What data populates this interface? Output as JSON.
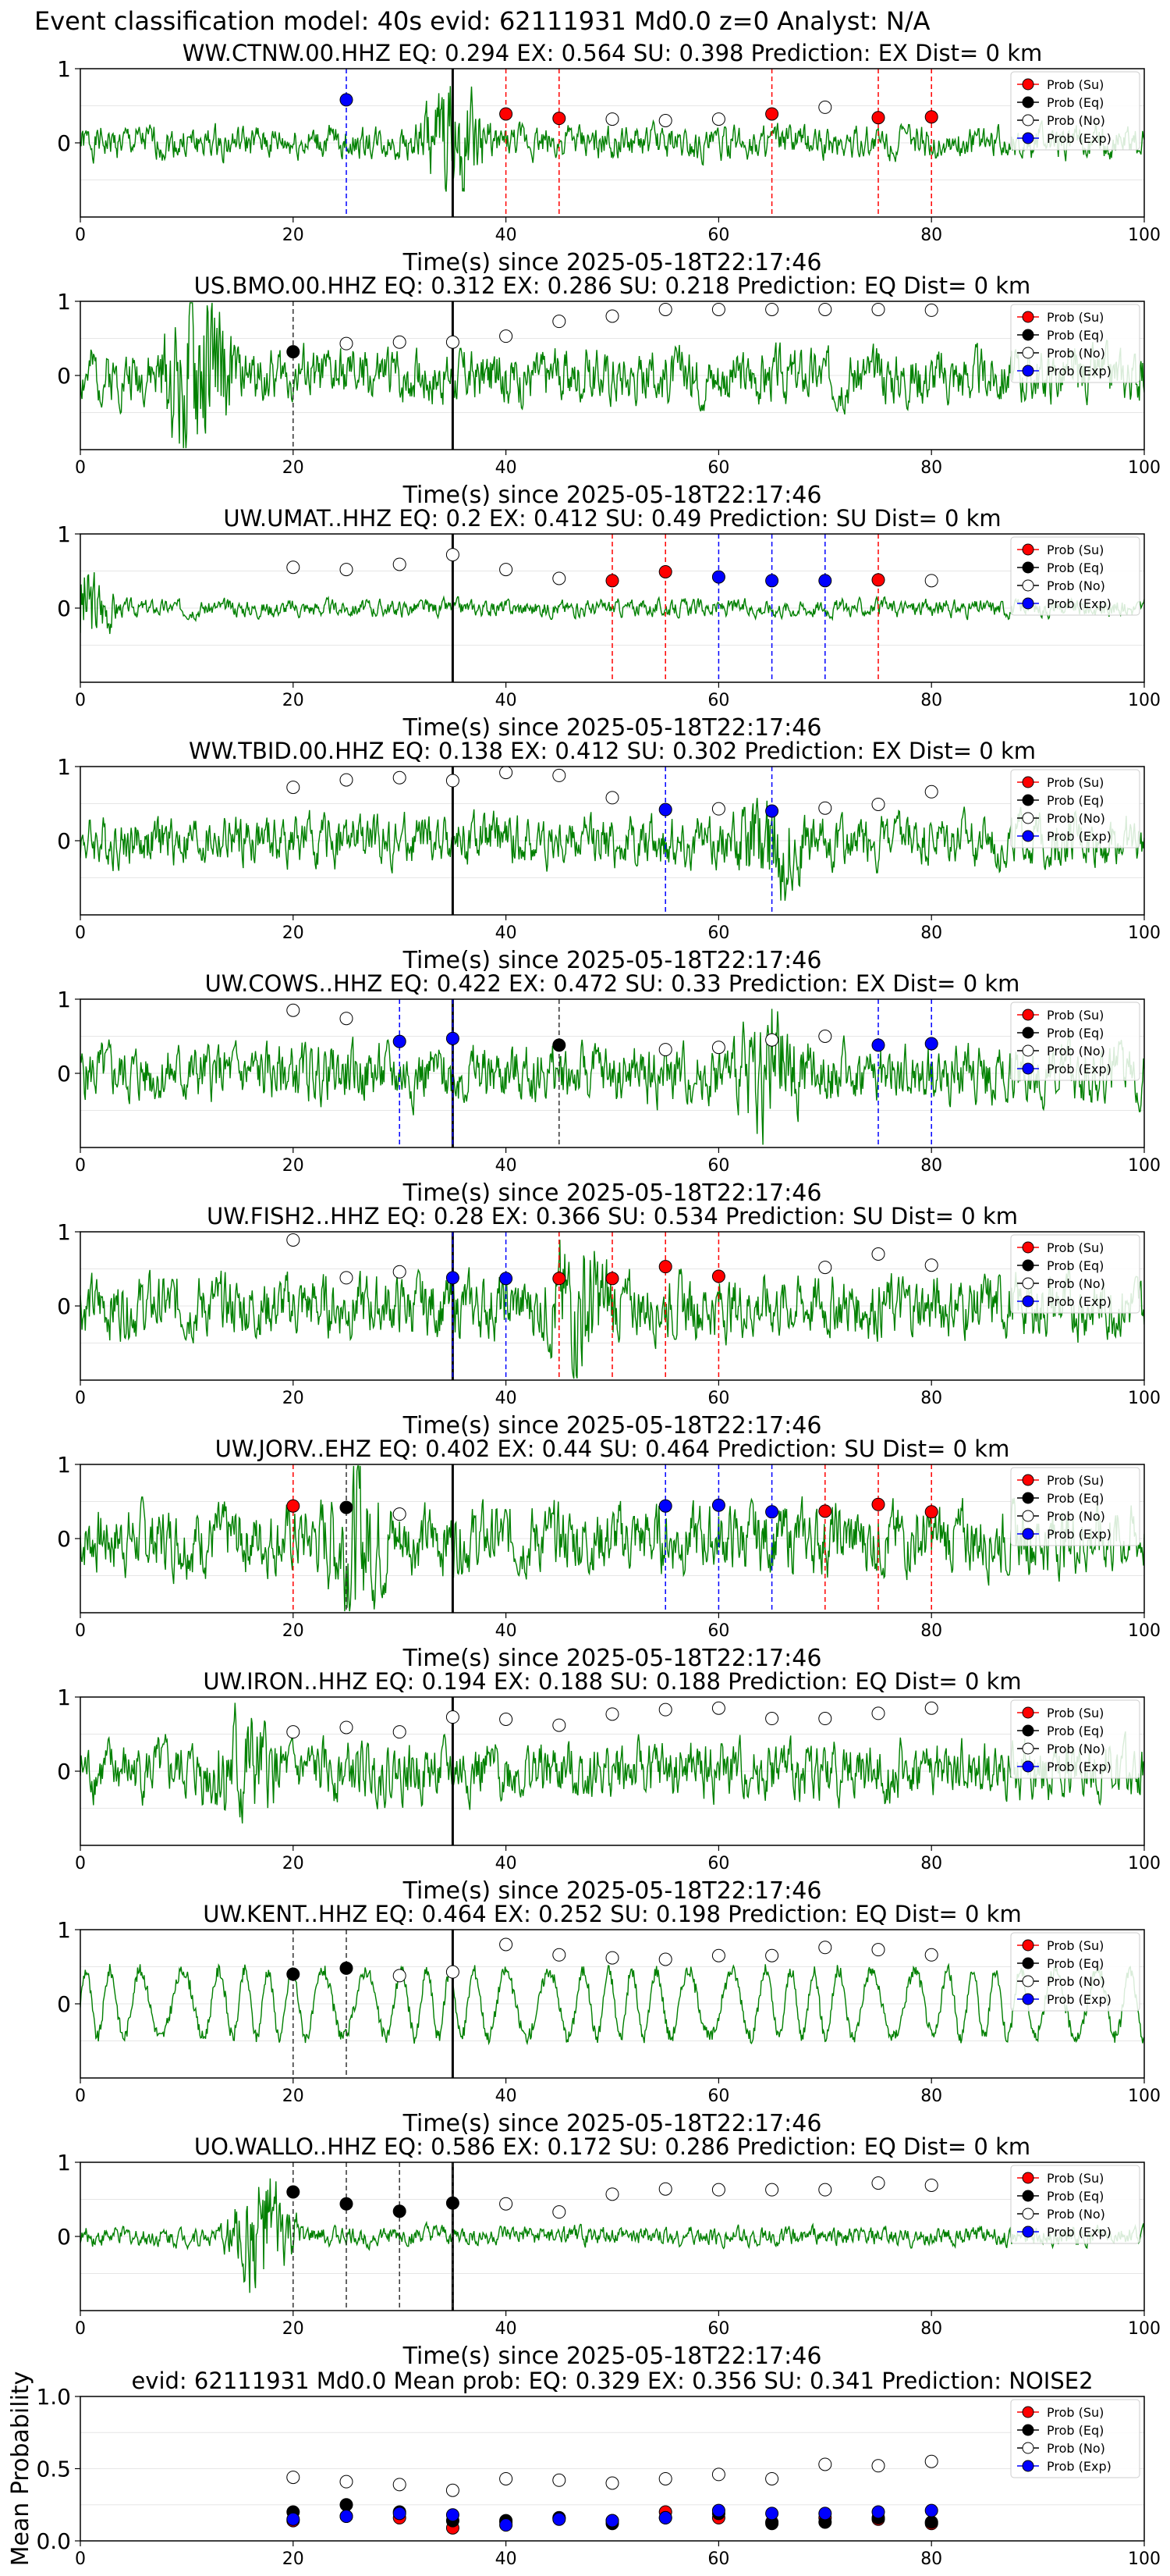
{
  "figure": {
    "suptitle": "Event classification model: 40s evid: 62111931 Md0.0 z=0 Analyst: N/A",
    "xlabel": "Time(s) since 2025-05-18T22:17:46",
    "legend": [
      "Prob (Su)",
      "Prob (Eq)",
      "Prob (No)",
      "Prob (Exp)"
    ],
    "colors": {
      "trace": "#008000",
      "su": "#ff0000",
      "eq": "#000000",
      "no": "#ffffff",
      "exp": "#0000ff",
      "onset": "#000000"
    }
  },
  "chart_data": [
    {
      "type": "line",
      "title": "WW.CTNW.00.HHZ   EQ: 0.294  EX: 0.564  SU: 0.398   Prediction: EX    Dist= 0 km",
      "xlabel": "Time(s) since 2025-05-18T22:17:46",
      "xlim": [
        0,
        100
      ],
      "ylim": [
        -1,
        1
      ],
      "xticks": [
        0,
        20,
        40,
        60,
        80,
        100
      ],
      "yticks": [
        0,
        1
      ],
      "onset_x": 35,
      "trace": {
        "amp": 0.17,
        "burst_at": 35,
        "burst_amp": 0.55,
        "seed": 1
      },
      "points": [
        {
          "x": 25,
          "y": 0.58,
          "cls": "exp"
        },
        {
          "x": 40,
          "y": 0.39,
          "cls": "su"
        },
        {
          "x": 45,
          "y": 0.33,
          "cls": "su"
        },
        {
          "x": 50,
          "y": 0.32,
          "cls": "no"
        },
        {
          "x": 55,
          "y": 0.3,
          "cls": "no"
        },
        {
          "x": 60,
          "y": 0.32,
          "cls": "no"
        },
        {
          "x": 65,
          "y": 0.39,
          "cls": "su"
        },
        {
          "x": 70,
          "y": 0.48,
          "cls": "no"
        },
        {
          "x": 75,
          "y": 0.34,
          "cls": "su"
        },
        {
          "x": 80,
          "y": 0.35,
          "cls": "su"
        }
      ]
    },
    {
      "type": "line",
      "title": "US.BMO.00.HHZ   EQ: 0.312  EX: 0.286  SU: 0.218   Prediction: EQ    Dist= 0 km",
      "xlabel": "Time(s) since 2025-05-18T22:17:46",
      "xlim": [
        0,
        100
      ],
      "ylim": [
        -1,
        1
      ],
      "xticks": [
        0,
        20,
        40,
        60,
        80,
        100
      ],
      "yticks": [
        0,
        1
      ],
      "onset_x": 35,
      "trace": {
        "amp": 0.28,
        "burst_at": 11,
        "burst_amp": 0.9,
        "seed": 2
      },
      "points": [
        {
          "x": 20,
          "y": 0.32,
          "cls": "eq"
        },
        {
          "x": 25,
          "y": 0.43,
          "cls": "no"
        },
        {
          "x": 30,
          "y": 0.45,
          "cls": "no"
        },
        {
          "x": 35,
          "y": 0.45,
          "cls": "no"
        },
        {
          "x": 40,
          "y": 0.53,
          "cls": "no"
        },
        {
          "x": 45,
          "y": 0.73,
          "cls": "no"
        },
        {
          "x": 50,
          "y": 0.8,
          "cls": "no"
        },
        {
          "x": 55,
          "y": 0.89,
          "cls": "no"
        },
        {
          "x": 60,
          "y": 0.89,
          "cls": "no"
        },
        {
          "x": 65,
          "y": 0.89,
          "cls": "no"
        },
        {
          "x": 70,
          "y": 0.89,
          "cls": "no"
        },
        {
          "x": 75,
          "y": 0.89,
          "cls": "no"
        },
        {
          "x": 80,
          "y": 0.88,
          "cls": "no"
        }
      ]
    },
    {
      "type": "line",
      "title": "UW.UMAT..HHZ   EQ: 0.2  EX: 0.412  SU: 0.49   Prediction: SU    Dist= 0 km",
      "xlabel": "Time(s) since 2025-05-18T22:17:46",
      "xlim": [
        0,
        100
      ],
      "ylim": [
        -1,
        1
      ],
      "xticks": [
        0,
        20,
        40,
        60,
        80,
        100
      ],
      "yticks": [
        0,
        1
      ],
      "onset_x": 35,
      "trace": {
        "amp": 0.09,
        "burst_at": 0,
        "burst_amp": 0.5,
        "seed": 3
      },
      "points": [
        {
          "x": 20,
          "y": 0.55,
          "cls": "no"
        },
        {
          "x": 25,
          "y": 0.52,
          "cls": "no"
        },
        {
          "x": 30,
          "y": 0.59,
          "cls": "no"
        },
        {
          "x": 35,
          "y": 0.72,
          "cls": "no"
        },
        {
          "x": 40,
          "y": 0.52,
          "cls": "no"
        },
        {
          "x": 45,
          "y": 0.4,
          "cls": "no"
        },
        {
          "x": 50,
          "y": 0.37,
          "cls": "su"
        },
        {
          "x": 55,
          "y": 0.49,
          "cls": "su"
        },
        {
          "x": 60,
          "y": 0.42,
          "cls": "exp"
        },
        {
          "x": 65,
          "y": 0.37,
          "cls": "exp"
        },
        {
          "x": 70,
          "y": 0.37,
          "cls": "exp"
        },
        {
          "x": 75,
          "y": 0.38,
          "cls": "su"
        },
        {
          "x": 80,
          "y": 0.37,
          "cls": "no"
        }
      ]
    },
    {
      "type": "line",
      "title": "WW.TBID.00.HHZ   EQ: 0.138  EX: 0.412  SU: 0.302   Prediction: EX    Dist= 0 km",
      "xlabel": "Time(s) since 2025-05-18T22:17:46",
      "xlim": [
        0,
        100
      ],
      "ylim": [
        -1,
        1
      ],
      "xticks": [
        0,
        20,
        40,
        60,
        80,
        100
      ],
      "yticks": [
        0,
        1
      ],
      "onset_x": 35,
      "trace": {
        "amp": 0.26,
        "burst_at": 65,
        "burst_amp": 0.4,
        "seed": 4
      },
      "points": [
        {
          "x": 20,
          "y": 0.72,
          "cls": "no"
        },
        {
          "x": 25,
          "y": 0.82,
          "cls": "no"
        },
        {
          "x": 30,
          "y": 0.85,
          "cls": "no"
        },
        {
          "x": 35,
          "y": 0.81,
          "cls": "no"
        },
        {
          "x": 40,
          "y": 0.92,
          "cls": "no"
        },
        {
          "x": 45,
          "y": 0.88,
          "cls": "no"
        },
        {
          "x": 50,
          "y": 0.58,
          "cls": "no"
        },
        {
          "x": 55,
          "y": 0.42,
          "cls": "exp"
        },
        {
          "x": 60,
          "y": 0.43,
          "cls": "no"
        },
        {
          "x": 65,
          "y": 0.4,
          "cls": "exp"
        },
        {
          "x": 70,
          "y": 0.44,
          "cls": "no"
        },
        {
          "x": 75,
          "y": 0.49,
          "cls": "no"
        },
        {
          "x": 80,
          "y": 0.66,
          "cls": "no"
        }
      ]
    },
    {
      "type": "line",
      "title": "UW.COWS..HHZ   EQ: 0.422  EX: 0.472  SU: 0.33   Prediction: EX    Dist= 0 km",
      "xlabel": "Time(s) since 2025-05-18T22:17:46",
      "xlim": [
        0,
        100
      ],
      "ylim": [
        -1,
        1
      ],
      "xticks": [
        0,
        20,
        40,
        60,
        80,
        100
      ],
      "yticks": [
        0,
        1
      ],
      "onset_x": 35,
      "trace": {
        "amp": 0.3,
        "burst_at": 65,
        "burst_amp": 0.45,
        "seed": 5
      },
      "points": [
        {
          "x": 20,
          "y": 0.85,
          "cls": "no"
        },
        {
          "x": 25,
          "y": 0.74,
          "cls": "no"
        },
        {
          "x": 30,
          "y": 0.43,
          "cls": "exp"
        },
        {
          "x": 35,
          "y": 0.47,
          "cls": "exp"
        },
        {
          "x": 45,
          "y": 0.38,
          "cls": "eq"
        },
        {
          "x": 55,
          "y": 0.32,
          "cls": "no"
        },
        {
          "x": 60,
          "y": 0.35,
          "cls": "no"
        },
        {
          "x": 65,
          "y": 0.45,
          "cls": "no"
        },
        {
          "x": 70,
          "y": 0.5,
          "cls": "no"
        },
        {
          "x": 75,
          "y": 0.38,
          "cls": "exp"
        },
        {
          "x": 80,
          "y": 0.4,
          "cls": "exp"
        }
      ]
    },
    {
      "type": "line",
      "title": "UW.FISH2..HHZ   EQ: 0.28  EX: 0.366  SU: 0.534   Prediction: SU    Dist= 0 km",
      "xlabel": "Time(s) since 2025-05-18T22:17:46",
      "xlim": [
        0,
        100
      ],
      "ylim": [
        -1,
        1
      ],
      "xticks": [
        0,
        20,
        40,
        60,
        80,
        100
      ],
      "yticks": [
        0,
        1
      ],
      "onset_x": 35,
      "trace": {
        "amp": 0.32,
        "burst_at": 47,
        "burst_amp": 0.5,
        "seed": 6
      },
      "points": [
        {
          "x": 20,
          "y": 0.89,
          "cls": "no"
        },
        {
          "x": 25,
          "y": 0.38,
          "cls": "no"
        },
        {
          "x": 30,
          "y": 0.46,
          "cls": "no"
        },
        {
          "x": 35,
          "y": 0.38,
          "cls": "exp"
        },
        {
          "x": 40,
          "y": 0.37,
          "cls": "exp"
        },
        {
          "x": 45,
          "y": 0.37,
          "cls": "su"
        },
        {
          "x": 50,
          "y": 0.37,
          "cls": "su"
        },
        {
          "x": 55,
          "y": 0.53,
          "cls": "su"
        },
        {
          "x": 60,
          "y": 0.4,
          "cls": "su"
        },
        {
          "x": 70,
          "y": 0.52,
          "cls": "no"
        },
        {
          "x": 75,
          "y": 0.7,
          "cls": "no"
        },
        {
          "x": 80,
          "y": 0.55,
          "cls": "no"
        }
      ]
    },
    {
      "type": "line",
      "title": "UW.JORV..EHZ   EQ: 0.402  EX: 0.44  SU: 0.464   Prediction: SU    Dist= 0 km",
      "xlabel": "Time(s) since 2025-05-18T22:17:46",
      "xlim": [
        0,
        100
      ],
      "ylim": [
        -1,
        1
      ],
      "xticks": [
        0,
        20,
        40,
        60,
        80,
        100
      ],
      "yticks": [
        0,
        1
      ],
      "onset_x": 35,
      "trace": {
        "amp": 0.35,
        "burst_at": 26,
        "burst_amp": 0.5,
        "seed": 7
      },
      "points": [
        {
          "x": 20,
          "y": 0.44,
          "cls": "su"
        },
        {
          "x": 25,
          "y": 0.42,
          "cls": "eq"
        },
        {
          "x": 30,
          "y": 0.33,
          "cls": "no"
        },
        {
          "x": 55,
          "y": 0.44,
          "cls": "exp"
        },
        {
          "x": 60,
          "y": 0.45,
          "cls": "exp"
        },
        {
          "x": 65,
          "y": 0.36,
          "cls": "exp"
        },
        {
          "x": 70,
          "y": 0.37,
          "cls": "su"
        },
        {
          "x": 75,
          "y": 0.46,
          "cls": "su"
        },
        {
          "x": 80,
          "y": 0.36,
          "cls": "su"
        }
      ]
    },
    {
      "type": "line",
      "title": "UW.IRON..HHZ   EQ: 0.194  EX: 0.188  SU: 0.188   Prediction: EQ    Dist= 0 km",
      "xlabel": "Time(s) since 2025-05-18T22:17:46",
      "xlim": [
        0,
        100
      ],
      "ylim": [
        -1,
        1
      ],
      "xticks": [
        0,
        20,
        40,
        60,
        80,
        100
      ],
      "yticks": [
        0,
        1
      ],
      "onset_x": 35,
      "trace": {
        "amp": 0.3,
        "burst_at": 15,
        "burst_amp": 0.4,
        "seed": 8
      },
      "points": [
        {
          "x": 20,
          "y": 0.53,
          "cls": "no"
        },
        {
          "x": 25,
          "y": 0.59,
          "cls": "no"
        },
        {
          "x": 30,
          "y": 0.53,
          "cls": "no"
        },
        {
          "x": 35,
          "y": 0.73,
          "cls": "no"
        },
        {
          "x": 40,
          "y": 0.7,
          "cls": "no"
        },
        {
          "x": 45,
          "y": 0.62,
          "cls": "no"
        },
        {
          "x": 50,
          "y": 0.77,
          "cls": "no"
        },
        {
          "x": 55,
          "y": 0.83,
          "cls": "no"
        },
        {
          "x": 60,
          "y": 0.85,
          "cls": "no"
        },
        {
          "x": 65,
          "y": 0.71,
          "cls": "no"
        },
        {
          "x": 70,
          "y": 0.71,
          "cls": "no"
        },
        {
          "x": 75,
          "y": 0.78,
          "cls": "no"
        },
        {
          "x": 80,
          "y": 0.85,
          "cls": "no"
        }
      ]
    },
    {
      "type": "line",
      "title": "UW.KENT..HHZ   EQ: 0.464  EX: 0.252  SU: 0.198   Prediction: EQ    Dist= 0 km",
      "xlabel": "Time(s) since 2025-05-18T22:17:46",
      "xlim": [
        0,
        100
      ],
      "ylim": [
        -1,
        1
      ],
      "xticks": [
        0,
        20,
        40,
        60,
        80,
        100
      ],
      "yticks": [
        0,
        1
      ],
      "onset_x": 35,
      "trace": {
        "amp": 0.45,
        "burst_at": 0,
        "burst_amp": 0.0,
        "seed": 9,
        "wave": true
      },
      "points": [
        {
          "x": 20,
          "y": 0.4,
          "cls": "eq"
        },
        {
          "x": 25,
          "y": 0.48,
          "cls": "eq"
        },
        {
          "x": 30,
          "y": 0.38,
          "cls": "no"
        },
        {
          "x": 35,
          "y": 0.43,
          "cls": "no"
        },
        {
          "x": 40,
          "y": 0.8,
          "cls": "no"
        },
        {
          "x": 45,
          "y": 0.66,
          "cls": "no"
        },
        {
          "x": 50,
          "y": 0.62,
          "cls": "no"
        },
        {
          "x": 55,
          "y": 0.6,
          "cls": "no"
        },
        {
          "x": 60,
          "y": 0.65,
          "cls": "no"
        },
        {
          "x": 65,
          "y": 0.65,
          "cls": "no"
        },
        {
          "x": 70,
          "y": 0.76,
          "cls": "no"
        },
        {
          "x": 75,
          "y": 0.73,
          "cls": "no"
        },
        {
          "x": 80,
          "y": 0.66,
          "cls": "no"
        }
      ]
    },
    {
      "type": "line",
      "title": "UO.WALLO..HHZ   EQ: 0.586  EX: 0.172  SU: 0.286   Prediction: EQ    Dist= 0 km",
      "xlabel": "Time(s) since 2025-05-18T22:17:46",
      "xlim": [
        0,
        100
      ],
      "ylim": [
        -1,
        1
      ],
      "xticks": [
        0,
        20,
        40,
        60,
        80,
        100
      ],
      "yticks": [
        0,
        1
      ],
      "onset_x": 35,
      "trace": {
        "amp": 0.1,
        "burst_at": 17,
        "burst_amp": 0.7,
        "seed": 10
      },
      "points": [
        {
          "x": 20,
          "y": 0.6,
          "cls": "eq"
        },
        {
          "x": 25,
          "y": 0.44,
          "cls": "eq"
        },
        {
          "x": 30,
          "y": 0.34,
          "cls": "eq"
        },
        {
          "x": 35,
          "y": 0.45,
          "cls": "eq"
        },
        {
          "x": 40,
          "y": 0.44,
          "cls": "no"
        },
        {
          "x": 45,
          "y": 0.33,
          "cls": "no"
        },
        {
          "x": 50,
          "y": 0.57,
          "cls": "no"
        },
        {
          "x": 55,
          "y": 0.64,
          "cls": "no"
        },
        {
          "x": 60,
          "y": 0.63,
          "cls": "no"
        },
        {
          "x": 65,
          "y": 0.63,
          "cls": "no"
        },
        {
          "x": 70,
          "y": 0.63,
          "cls": "no"
        },
        {
          "x": 75,
          "y": 0.72,
          "cls": "no"
        },
        {
          "x": 80,
          "y": 0.69,
          "cls": "no"
        }
      ]
    },
    {
      "type": "scatter",
      "title": "evid: 62111931  Md0.0   Mean prob:   EQ: 0.329  EX: 0.356  SU: 0.341   Prediction: NOISE2",
      "ylabel": "Mean Probability",
      "xlim": [
        0,
        100
      ],
      "ylim": [
        0,
        1
      ],
      "xticks": [
        0,
        20,
        40,
        60,
        80,
        100
      ],
      "yticks": [
        0.0,
        0.5,
        1.0
      ],
      "ytick_labels": [
        "0.0",
        "0.5",
        "1.0"
      ],
      "x": [
        20,
        25,
        30,
        35,
        40,
        45,
        50,
        55,
        60,
        65,
        70,
        75,
        80
      ],
      "series": [
        {
          "name": "Prob (Su)",
          "cls": "su",
          "values": [
            0.14,
            0.17,
            0.16,
            0.09,
            0.13,
            0.16,
            0.14,
            0.2,
            0.16,
            0.13,
            0.16,
            0.15,
            0.12
          ]
        },
        {
          "name": "Prob (Eq)",
          "cls": "eq",
          "values": [
            0.2,
            0.25,
            0.2,
            0.14,
            0.14,
            0.16,
            0.12,
            0.16,
            0.19,
            0.12,
            0.13,
            0.16,
            0.13
          ]
        },
        {
          "name": "Prob (No)",
          "cls": "no",
          "values": [
            0.44,
            0.41,
            0.39,
            0.35,
            0.43,
            0.42,
            0.4,
            0.43,
            0.46,
            0.43,
            0.53,
            0.52,
            0.55
          ]
        },
        {
          "name": "Prob (Exp)",
          "cls": "exp",
          "values": [
            0.15,
            0.17,
            0.19,
            0.18,
            0.11,
            0.15,
            0.14,
            0.16,
            0.21,
            0.19,
            0.19,
            0.2,
            0.21
          ]
        }
      ]
    }
  ]
}
